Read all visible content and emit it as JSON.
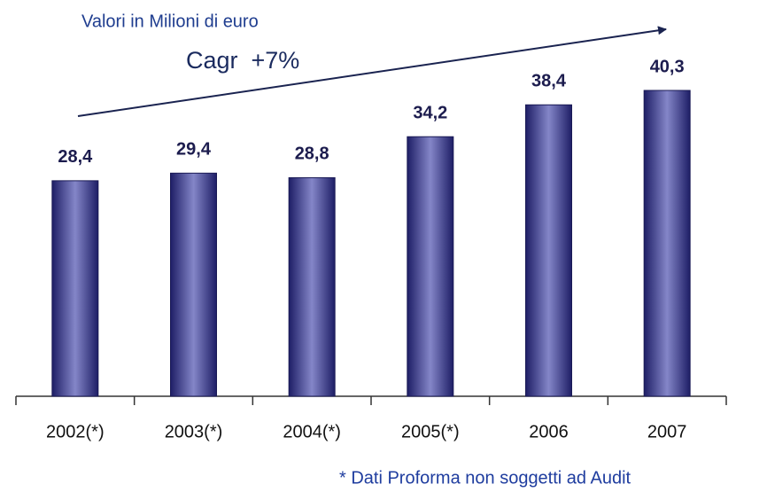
{
  "chart_data": {
    "type": "bar",
    "title": "Valori in Milioni di euro",
    "subtitle": "Cagr  +7%",
    "categories": [
      "2002(*)",
      "2003(*)",
      "2004(*)",
      "2005(*)",
      "2006",
      "2007"
    ],
    "values": [
      28.4,
      29.4,
      28.8,
      34.2,
      38.4,
      40.3
    ],
    "value_labels": [
      "28,4",
      "29,4",
      "28,8",
      "34,2",
      "38,4",
      "40,3"
    ],
    "color": "#8486c8",
    "note": "* Dati Proforma non soggetti ad Audit"
  }
}
